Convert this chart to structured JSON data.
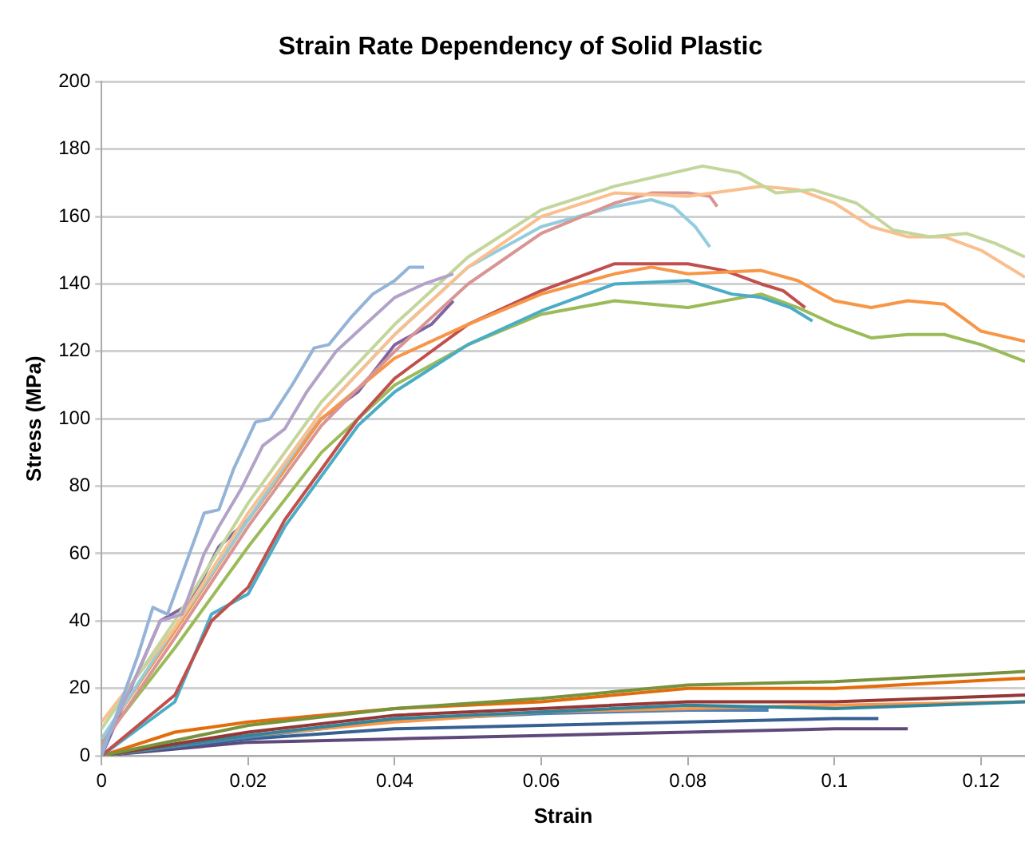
{
  "chart_data": {
    "type": "line",
    "title": "Strain Rate Dependency of Solid Plastic",
    "xlabel": "Strain",
    "ylabel": "Stress (MPa)",
    "xlim": [
      0,
      0.126
    ],
    "xticks": [
      0,
      0.02,
      0.04,
      0.06,
      0.08,
      0.1,
      0.12
    ],
    "ylim": [
      0,
      200
    ],
    "yticks": [
      0,
      20,
      40,
      60,
      80,
      100,
      120,
      140,
      160,
      180,
      200
    ],
    "grid": "y",
    "legend": false,
    "marker": "none",
    "line_style": "solid",
    "series": [
      {
        "color": "#95b3d7",
        "x": [
          0,
          0.005,
          0.007,
          0.009,
          0.012,
          0.014,
          0.016,
          0.018,
          0.021,
          0.023,
          0.026,
          0.029,
          0.031,
          0.034,
          0.037,
          0.04,
          0.042,
          0.044
        ],
        "values": [
          0,
          30,
          44,
          42,
          60,
          72,
          73,
          85,
          99,
          100,
          110,
          121,
          122,
          130,
          137,
          141,
          145,
          145
        ]
      },
      {
        "color": "#b3a2c7",
        "x": [
          0,
          0.005,
          0.008,
          0.011,
          0.014,
          0.016,
          0.019,
          0.022,
          0.025,
          0.028,
          0.032,
          0.036,
          0.04,
          0.044,
          0.048
        ],
        "values": [
          2,
          25,
          40,
          42,
          60,
          68,
          79,
          92,
          97,
          108,
          120,
          128,
          136,
          140,
          143
        ]
      },
      {
        "color": "#c3d69b",
        "x": [
          0,
          0.01,
          0.02,
          0.03,
          0.04,
          0.05,
          0.06,
          0.07,
          0.076,
          0.082,
          0.087,
          0.092,
          0.097,
          0.103,
          0.108,
          0.113,
          0.118,
          0.122,
          0.126
        ],
        "values": [
          8,
          40,
          75,
          105,
          128,
          148,
          162,
          169,
          172,
          175,
          173,
          167,
          168,
          164,
          156,
          154,
          155,
          152,
          148
        ]
      },
      {
        "color": "#fabf8f",
        "x": [
          0,
          0.01,
          0.02,
          0.03,
          0.04,
          0.05,
          0.06,
          0.07,
          0.08,
          0.09,
          0.095,
          0.1,
          0.105,
          0.11,
          0.115,
          0.12,
          0.126
        ],
        "values": [
          10,
          38,
          72,
          102,
          125,
          145,
          160,
          167,
          166,
          169,
          168,
          164,
          157,
          154,
          154,
          150,
          142
        ]
      },
      {
        "color": "#d99594",
        "x": [
          0,
          0.01,
          0.02,
          0.03,
          0.04,
          0.05,
          0.06,
          0.07,
          0.075,
          0.08,
          0.083,
          0.084
        ],
        "values": [
          3,
          35,
          68,
          98,
          120,
          140,
          155,
          164,
          167,
          167,
          166,
          163
        ]
      },
      {
        "color": "#93cddd",
        "x": [
          0,
          0.01,
          0.02,
          0.03,
          0.04,
          0.05,
          0.06,
          0.07,
          0.075,
          0.078,
          0.081,
          0.083
        ],
        "values": [
          5,
          38,
          70,
          102,
          125,
          145,
          157,
          163,
          165,
          163,
          157,
          151
        ]
      },
      {
        "color": "#f79646",
        "x": [
          0,
          0.01,
          0.02,
          0.03,
          0.04,
          0.05,
          0.06,
          0.07,
          0.075,
          0.08,
          0.09,
          0.095,
          0.1,
          0.105,
          0.11,
          0.115,
          0.12,
          0.126
        ],
        "values": [
          5,
          37,
          70,
          100,
          118,
          128,
          137,
          143,
          145,
          143,
          144,
          141,
          135,
          133,
          135,
          134,
          126,
          123
        ]
      },
      {
        "color": "#c0504d",
        "x": [
          0,
          0.01,
          0.015,
          0.02,
          0.025,
          0.03,
          0.035,
          0.04,
          0.05,
          0.06,
          0.07,
          0.08,
          0.085,
          0.09,
          0.093,
          0.096
        ],
        "values": [
          0,
          18,
          40,
          50,
          70,
          85,
          100,
          112,
          128,
          138,
          146,
          146,
          144,
          140,
          138,
          133
        ]
      },
      {
        "color": "#4bacc6",
        "x": [
          0,
          0.01,
          0.015,
          0.02,
          0.025,
          0.03,
          0.035,
          0.04,
          0.05,
          0.06,
          0.07,
          0.08,
          0.086,
          0.09,
          0.094,
          0.097
        ],
        "values": [
          0,
          16,
          42,
          48,
          68,
          83,
          98,
          108,
          122,
          132,
          140,
          141,
          137,
          136,
          133,
          129
        ]
      },
      {
        "color": "#9bbb59",
        "x": [
          0,
          0.01,
          0.02,
          0.03,
          0.04,
          0.05,
          0.06,
          0.07,
          0.08,
          0.09,
          0.095,
          0.1,
          0.105,
          0.11,
          0.115,
          0.12,
          0.126
        ],
        "values": [
          4,
          32,
          62,
          90,
          110,
          122,
          131,
          135,
          133,
          137,
          133,
          128,
          124,
          125,
          125,
          122,
          117
        ]
      },
      {
        "color": "#8064a2",
        "x": [
          0,
          0.005,
          0.008,
          0.012,
          0.016,
          0.02,
          0.03,
          0.035,
          0.04,
          0.045,
          0.048
        ],
        "values": [
          0,
          25,
          40,
          45,
          62,
          70,
          100,
          108,
          122,
          128,
          135
        ]
      },
      {
        "color": "#77933c",
        "x": [
          0,
          0.02,
          0.04,
          0.06,
          0.08,
          0.1,
          0.126
        ],
        "values": [
          0,
          9,
          14,
          17,
          21,
          22,
          25
        ]
      },
      {
        "color": "#e46c0a",
        "x": [
          0,
          0.01,
          0.02,
          0.04,
          0.06,
          0.08,
          0.1,
          0.126
        ],
        "values": [
          0,
          7,
          10,
          14,
          16,
          20,
          20,
          23
        ]
      },
      {
        "color": "#953735",
        "x": [
          0,
          0.02,
          0.04,
          0.06,
          0.08,
          0.1,
          0.126
        ],
        "values": [
          0,
          7,
          12,
          14,
          16,
          16,
          18
        ]
      },
      {
        "color": "#31859c",
        "x": [
          0,
          0.02,
          0.04,
          0.06,
          0.08,
          0.1,
          0.126
        ],
        "values": [
          0,
          6,
          11,
          13,
          15,
          14,
          16
        ]
      },
      {
        "color": "#f79646",
        "x": [
          0,
          0.02,
          0.04,
          0.06,
          0.08,
          0.1,
          0.126
        ],
        "values": [
          0,
          6,
          10,
          13,
          14,
          15,
          16
        ]
      },
      {
        "color": "#4f81bd",
        "x": [
          0,
          0.02,
          0.04,
          0.06,
          0.08,
          0.091
        ],
        "values": [
          0,
          5.5,
          10.5,
          12.5,
          13.5,
          13.5
        ]
      },
      {
        "color": "#376092",
        "x": [
          0,
          0.02,
          0.04,
          0.06,
          0.08,
          0.1,
          0.106
        ],
        "values": [
          0,
          5,
          8,
          9,
          10,
          11,
          11
        ]
      },
      {
        "color": "#5f497a",
        "x": [
          0,
          0.02,
          0.04,
          0.06,
          0.08,
          0.1,
          0.11
        ],
        "values": [
          0,
          4,
          5,
          6,
          7,
          8,
          8
        ]
      }
    ]
  }
}
